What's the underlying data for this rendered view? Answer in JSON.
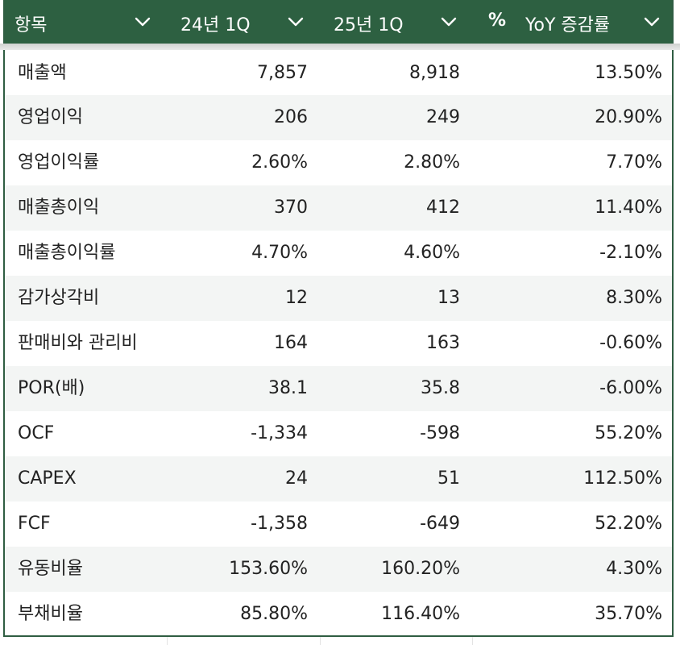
{
  "table": {
    "columns": [
      {
        "label": "항목",
        "filter_icon": "chevron-down-icon"
      },
      {
        "label": "24년 1Q",
        "filter_icon": "chevron-down-icon"
      },
      {
        "label": "25년 1Q",
        "filter_icon": "chevron-down-icon"
      },
      {
        "label": "YoY 증감률",
        "type_icon": "%",
        "filter_icon": "chevron-down-icon"
      }
    ],
    "rows": [
      [
        "매출액",
        "7,857",
        "8,918",
        "13.50%"
      ],
      [
        "영업이익",
        "206",
        "249",
        "20.90%"
      ],
      [
        "영업이익률",
        "2.60%",
        "2.80%",
        "7.70%"
      ],
      [
        "매출총이익",
        "370",
        "412",
        "11.40%"
      ],
      [
        "매출총이익률",
        "4.70%",
        "4.60%",
        "-2.10%"
      ],
      [
        "감가상각비",
        "12",
        "13",
        "8.30%"
      ],
      [
        "판매비와 관리비",
        "164",
        "163",
        "-0.60%"
      ],
      [
        "POR(배)",
        "38.1",
        "35.8",
        "-6.00%"
      ],
      [
        "OCF",
        "-1,334",
        "-598",
        "55.20%"
      ],
      [
        "CAPEX",
        "24",
        "51",
        "112.50%"
      ],
      [
        "FCF",
        "-1,358",
        "-649",
        "52.20%"
      ],
      [
        "유동비율",
        "153.60%",
        "160.20%",
        "4.30%"
      ],
      [
        "부채비율",
        "85.80%",
        "116.40%",
        "35.70%"
      ]
    ]
  },
  "colors": {
    "header_bg": "#2d6041",
    "header_text": "#ffffff",
    "row_alt_bg": "#f3f5f4",
    "border": "#2f5d42",
    "text": "#222222"
  }
}
